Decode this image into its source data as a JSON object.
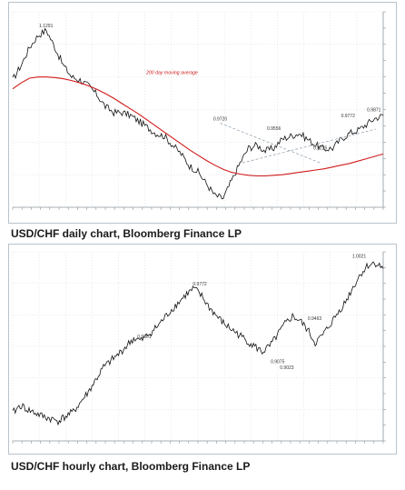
{
  "captions": {
    "daily": "USD/CHF daily chart, Bloomberg Finance LP",
    "hourly": "USD/CHF hourly chart, Bloomberg Finance LP"
  },
  "colors": {
    "price": "#111111",
    "ma200": "#d11a1a",
    "trend": "#9aa6b2",
    "grid": "#d8dde2",
    "frame": "#b9c3cc"
  },
  "chart_data": [
    {
      "type": "line",
      "title": "",
      "annotations": [
        {
          "label": "1.1291",
          "x": 0.09,
          "y": 1.1291
        },
        {
          "label": "200 day moving average",
          "x": 0.43,
          "y": 1.05
        },
        {
          "label": "0.9720",
          "x": 0.56,
          "y": 0.972
        },
        {
          "label": "0.9556",
          "x": 0.705,
          "y": 0.9556
        },
        {
          "label": "0.9225",
          "x": 0.83,
          "y": 0.9225
        },
        {
          "label": "0.9772",
          "x": 0.905,
          "y": 0.9772
        },
        {
          "label": "0.9871",
          "x": 0.975,
          "y": 0.9871
        }
      ],
      "ylim": [
        0.83,
        1.16
      ],
      "series": [
        {
          "values": [
            1.045,
            1.07,
            1.1,
            1.12,
            1.129,
            1.1,
            1.07,
            1.05,
            1.045,
            1.035,
            1.02,
            1.0,
            0.99,
            0.99,
            0.985,
            0.975,
            0.965,
            0.955,
            0.95,
            0.935,
            0.92,
            0.9,
            0.89,
            0.87,
            0.85,
            0.845,
            0.875,
            0.905,
            0.93,
            0.935,
            0.925,
            0.93,
            0.945,
            0.95,
            0.955,
            0.945,
            0.935,
            0.928,
            0.93,
            0.945,
            0.955,
            0.96,
            0.97,
            0.98,
            0.985
          ]
        },
        {
          "name": "200 day moving average",
          "values": [
            1.03,
            1.04,
            1.048,
            1.05,
            1.05,
            1.049,
            1.047,
            1.044,
            1.04,
            1.035,
            1.029,
            1.022,
            1.014,
            1.005,
            0.996,
            0.987,
            0.977,
            0.967,
            0.957,
            0.947,
            0.937,
            0.927,
            0.918,
            0.909,
            0.901,
            0.894,
            0.889,
            0.886,
            0.884,
            0.883,
            0.883,
            0.884,
            0.885,
            0.887,
            0.889,
            0.891,
            0.893,
            0.895,
            0.898,
            0.901,
            0.904,
            0.908,
            0.912,
            0.916,
            0.92
          ]
        }
      ]
    },
    {
      "type": "line",
      "title": "",
      "annotations": [
        {
          "label": "0.9772",
          "x": 0.505,
          "y": 0.9772
        },
        {
          "label": "0.9301",
          "x": 0.355,
          "y": 0.9301
        },
        {
          "label": "0.9075",
          "x": 0.715,
          "y": 0.9075
        },
        {
          "label": "0.9463",
          "x": 0.815,
          "y": 0.9463
        },
        {
          "label": "0.9023",
          "x": 0.74,
          "y": 0.9023
        },
        {
          "label": "1.0021",
          "x": 0.935,
          "y": 1.0021
        }
      ],
      "ylim": [
        0.84,
        1.01
      ],
      "series": [
        {
          "values": [
            0.865,
            0.872,
            0.868,
            0.865,
            0.862,
            0.86,
            0.858,
            0.862,
            0.866,
            0.875,
            0.884,
            0.895,
            0.906,
            0.912,
            0.918,
            0.925,
            0.932,
            0.93,
            0.936,
            0.942,
            0.95,
            0.958,
            0.965,
            0.972,
            0.977,
            0.97,
            0.96,
            0.952,
            0.945,
            0.94,
            0.935,
            0.93,
            0.925,
            0.92,
            0.925,
            0.935,
            0.945,
            0.952,
            0.948,
            0.94,
            0.928,
            0.935,
            0.945,
            0.955,
            0.965,
            0.978,
            0.99,
            0.998,
            1.0,
            0.995
          ]
        }
      ]
    }
  ]
}
